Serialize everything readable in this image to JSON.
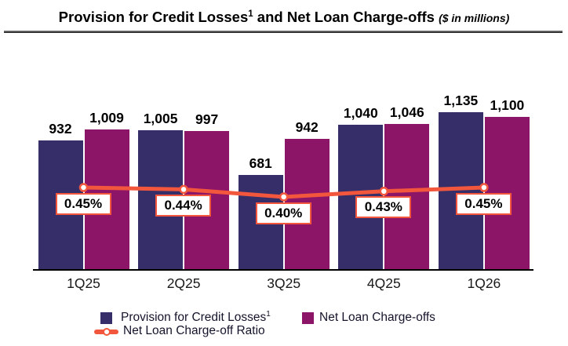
{
  "title": {
    "prefix": "Provision for Credit Losses",
    "sup": "1",
    "rest": " and Net Loan Charge-offs ",
    "note": "($ in millions)"
  },
  "chart_data": {
    "type": "bar",
    "title": "Provision for Credit Losses1 and Net Loan Charge-offs ($ in millions)",
    "categories": [
      "1Q25",
      "2Q25",
      "3Q25",
      "4Q25",
      "1Q26"
    ],
    "series": [
      {
        "name": "Provision for Credit Losses",
        "sup": "1",
        "color": "#352e68",
        "values": [
          932,
          1005,
          681,
          1040,
          1135
        ],
        "labels": [
          "932",
          "1,005",
          "681",
          "1,040",
          "1,135"
        ]
      },
      {
        "name": "Net Loan Charge-offs",
        "color": "#8c1568",
        "values": [
          1009,
          997,
          942,
          1046,
          1100
        ],
        "labels": [
          "1,009",
          "997",
          "942",
          "1,046",
          "1,100"
        ]
      }
    ],
    "line_series": {
      "name": "Net Loan Charge-off Ratio",
      "color": "#f2573d",
      "marker": "circle-open",
      "values": [
        0.45,
        0.44,
        0.4,
        0.43,
        0.45
      ],
      "labels": [
        "0.45%",
        "0.44%",
        "0.40%",
        "0.43%",
        "0.45%"
      ]
    },
    "ylim": [
      0,
      1200
    ],
    "grid": false,
    "legend_position": "bottom"
  },
  "legend": {
    "items": [
      {
        "label": "Provision for Credit Losses",
        "sup": "1",
        "color": "#352e68"
      },
      {
        "label": "Net Loan Charge-offs",
        "color": "#8c1568"
      },
      {
        "label": "Net Loan Charge-off Ratio",
        "color": "#f2573d"
      }
    ]
  },
  "colors": {
    "provision": "#352e68",
    "charge_offs": "#8c1568",
    "ratio_line": "#f2573d",
    "axis": "#000000"
  }
}
